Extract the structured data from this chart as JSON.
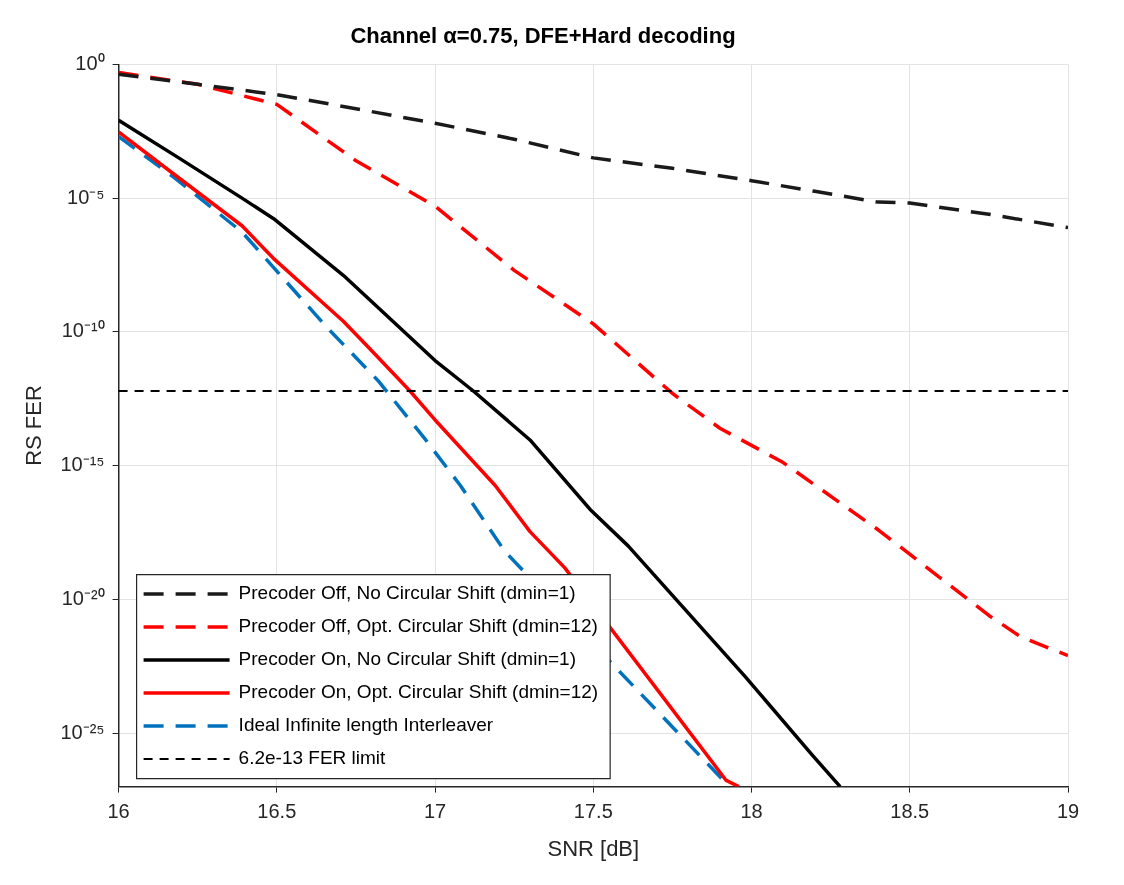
{
  "chart_data": {
    "type": "line",
    "title": "Channel α=0.75, DFE+Hard decoding",
    "xlabel": "SNR [dB]",
    "ylabel": "RS FER",
    "log": "y",
    "grid": true,
    "legend": "bottom left",
    "xlim": [
      16,
      19
    ],
    "xticks": [
      16,
      16.5,
      17,
      17.5,
      18,
      18.5,
      19
    ],
    "ylim": [
      1e-27,
      1
    ],
    "yticks": [
      {
        "value": 1,
        "label": "10⁰"
      },
      {
        "value": 1e-05,
        "label": "10⁻⁵"
      },
      {
        "value": 1e-10,
        "label": "10⁻¹⁰"
      },
      {
        "value": 1e-15,
        "label": "10⁻¹⁵"
      },
      {
        "value": 1e-20,
        "label": "10⁻²⁰"
      },
      {
        "value": 1e-25,
        "label": "10⁻²⁵"
      }
    ],
    "series": [
      {
        "name": "Precoder Off, No Circular Shift (dmin=1)",
        "color": "#1a1a1a",
        "line_style": "dashed",
        "x": [
          16,
          16.25,
          16.5,
          16.75,
          17,
          17.25,
          17.5,
          17.75,
          18,
          18.2,
          18.4,
          18.5,
          18.75,
          19
        ],
        "values": [
          0.43,
          0.18,
          0.074,
          0.022,
          0.0063,
          0.0016,
          0.00032,
          0.00013,
          4.5e-05,
          1.8e-05,
          7.1e-06,
          6.6e-06,
          2.5e-06,
          7.9e-07
        ]
      },
      {
        "name": "Precoder Off, Opt. Circular Shift (dmin=12)",
        "color": "#ff0000",
        "line_style": "dashed",
        "x": [
          16,
          16.25,
          16.5,
          16.75,
          17,
          17.25,
          17.5,
          17.75,
          17.9,
          18.1,
          18.4,
          18.75,
          18.85,
          19
        ],
        "values": [
          0.5,
          0.18,
          0.032,
          0.00025,
          5e-06,
          2e-08,
          2e-10,
          5e-13,
          2.5e-14,
          1.3e-15,
          4e-18,
          2.5e-21,
          4e-22,
          7.9e-23
        ]
      },
      {
        "name": "Precoder On, No Circular Shift (dmin=1)",
        "color": "#000000",
        "line_style": "solid",
        "x": [
          16,
          16.19,
          16.39,
          16.49,
          16.71,
          17,
          17.12,
          17.3,
          17.49,
          17.61,
          17.98,
          18.19,
          18.28
        ],
        "values": [
          0.0081,
          0.00032,
          1e-05,
          1.7e-06,
          1.3e-08,
          8.5e-12,
          6.3e-13,
          9.1e-15,
          2.3e-17,
          1e-18,
          1.3e-23,
          1.6e-26,
          1e-27
        ]
      },
      {
        "name": "Precoder On, Opt. Circular Shift (dmin=12)",
        "color": "#ff0000",
        "line_style": "solid",
        "x": [
          16,
          16.17,
          16.39,
          16.49,
          16.71,
          16.79,
          16.92,
          17,
          17.19,
          17.3,
          17.41,
          17.92,
          17.96
        ],
        "values": [
          0.003,
          8.7e-05,
          9.3e-07,
          5.5e-08,
          2.5e-10,
          2.6e-11,
          6.3e-13,
          5.1e-14,
          1.8e-16,
          3.4e-18,
          1.5e-19,
          1.7e-27,
          1e-27
        ]
      },
      {
        "name": "Ideal Infinite length Interleaver",
        "color": "#0072bd",
        "line_style": "dashed",
        "x": [
          16,
          16.17,
          16.39,
          16.66,
          16.82,
          16.97,
          17.08,
          17.22,
          17.93
        ],
        "values": [
          0.002,
          6.6e-05,
          5.4e-07,
          1.4e-10,
          1.5e-12,
          9.3e-15,
          1.8e-16,
          6.3e-19,
          1e-27
        ]
      }
    ],
    "ref_lines": [
      {
        "axis": "y",
        "value": 6.2e-13,
        "label": "6.2e-13 FER limit",
        "color": "#000000",
        "line_style": "dashed"
      }
    ]
  }
}
